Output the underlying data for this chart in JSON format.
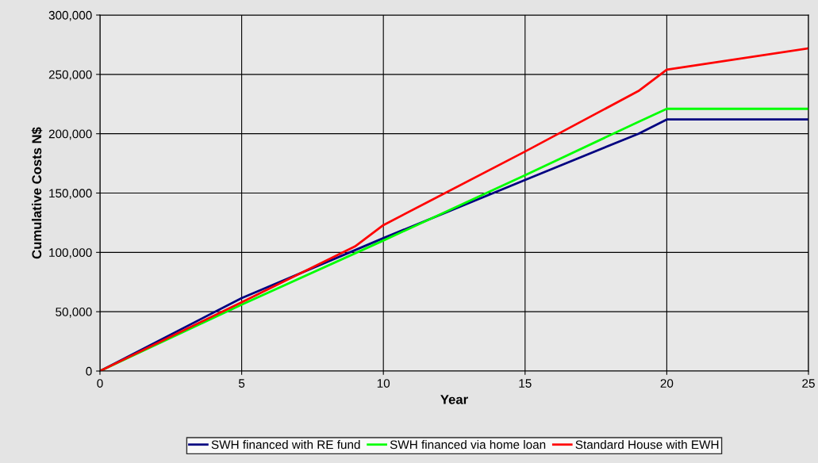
{
  "chart_data": {
    "type": "line",
    "xlabel": "Year",
    "ylabel": "Cumulative Costs N$",
    "x": [
      0,
      5,
      10,
      15,
      19,
      20,
      25
    ],
    "series": [
      {
        "name": "SWH financed with RE fund",
        "color": "#000080",
        "values": [
          0,
          61500,
          112000,
          161000,
          200000,
          212000,
          212000
        ]
      },
      {
        "name": "SWH financed via home loan",
        "color": "#00ff00",
        "values": [
          0,
          56000,
          110000,
          165000,
          210000,
          221000,
          221000
        ]
      },
      {
        "name": "Standard House with EWH",
        "color": "#ff0000",
        "x": [
          0,
          5,
          9,
          10,
          15,
          19,
          20,
          25
        ],
        "values": [
          0,
          58000,
          105000,
          123000,
          185000,
          236000,
          254000,
          272000
        ]
      }
    ],
    "xlim": [
      0,
      25
    ],
    "xticks": [
      0,
      5,
      10,
      15,
      20,
      25
    ],
    "ylim": [
      0,
      300000
    ],
    "yticks": [
      {
        "value": 0,
        "label": "0"
      },
      {
        "value": 50000,
        "label": "50,000"
      },
      {
        "value": 100000,
        "label": "100,000"
      },
      {
        "value": 150000,
        "label": "150,000"
      },
      {
        "value": 200000,
        "label": "200,000"
      },
      {
        "value": 250000,
        "label": "250,000"
      },
      {
        "value": 300000,
        "label": "300,000"
      }
    ],
    "grid": true,
    "legend": "bottom",
    "marker": "none",
    "line_style": "solid"
  }
}
